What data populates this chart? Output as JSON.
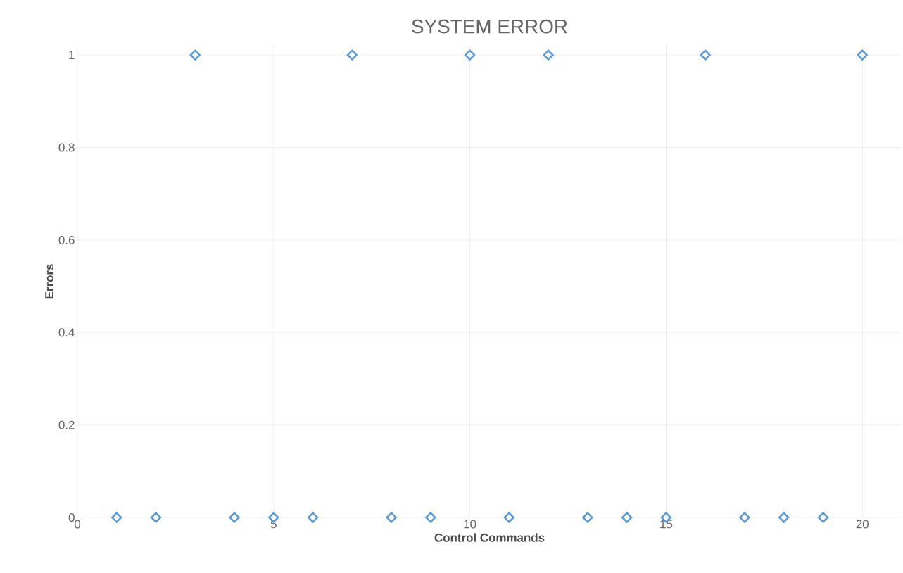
{
  "chart_data": {
    "type": "scatter",
    "title": "SYSTEM ERROR",
    "xlabel": "Control Commands",
    "ylabel": "Errors",
    "x": [
      1,
      2,
      3,
      4,
      5,
      6,
      7,
      8,
      9,
      10,
      11,
      12,
      13,
      14,
      15,
      16,
      17,
      18,
      19,
      20
    ],
    "values": [
      0,
      0,
      1,
      0,
      0,
      0,
      1,
      0,
      0,
      1,
      0,
      1,
      0,
      0,
      0,
      1,
      0,
      0,
      0,
      1
    ],
    "color": "#5b9bd5",
    "marker": "diamond",
    "xlim": [
      0,
      21
    ],
    "ylim": [
      0,
      1.02
    ],
    "xticks": [
      0,
      5,
      10,
      15,
      20
    ],
    "yticks": [
      0,
      0.2,
      0.4,
      0.6,
      0.8,
      1
    ],
    "grid": true
  }
}
